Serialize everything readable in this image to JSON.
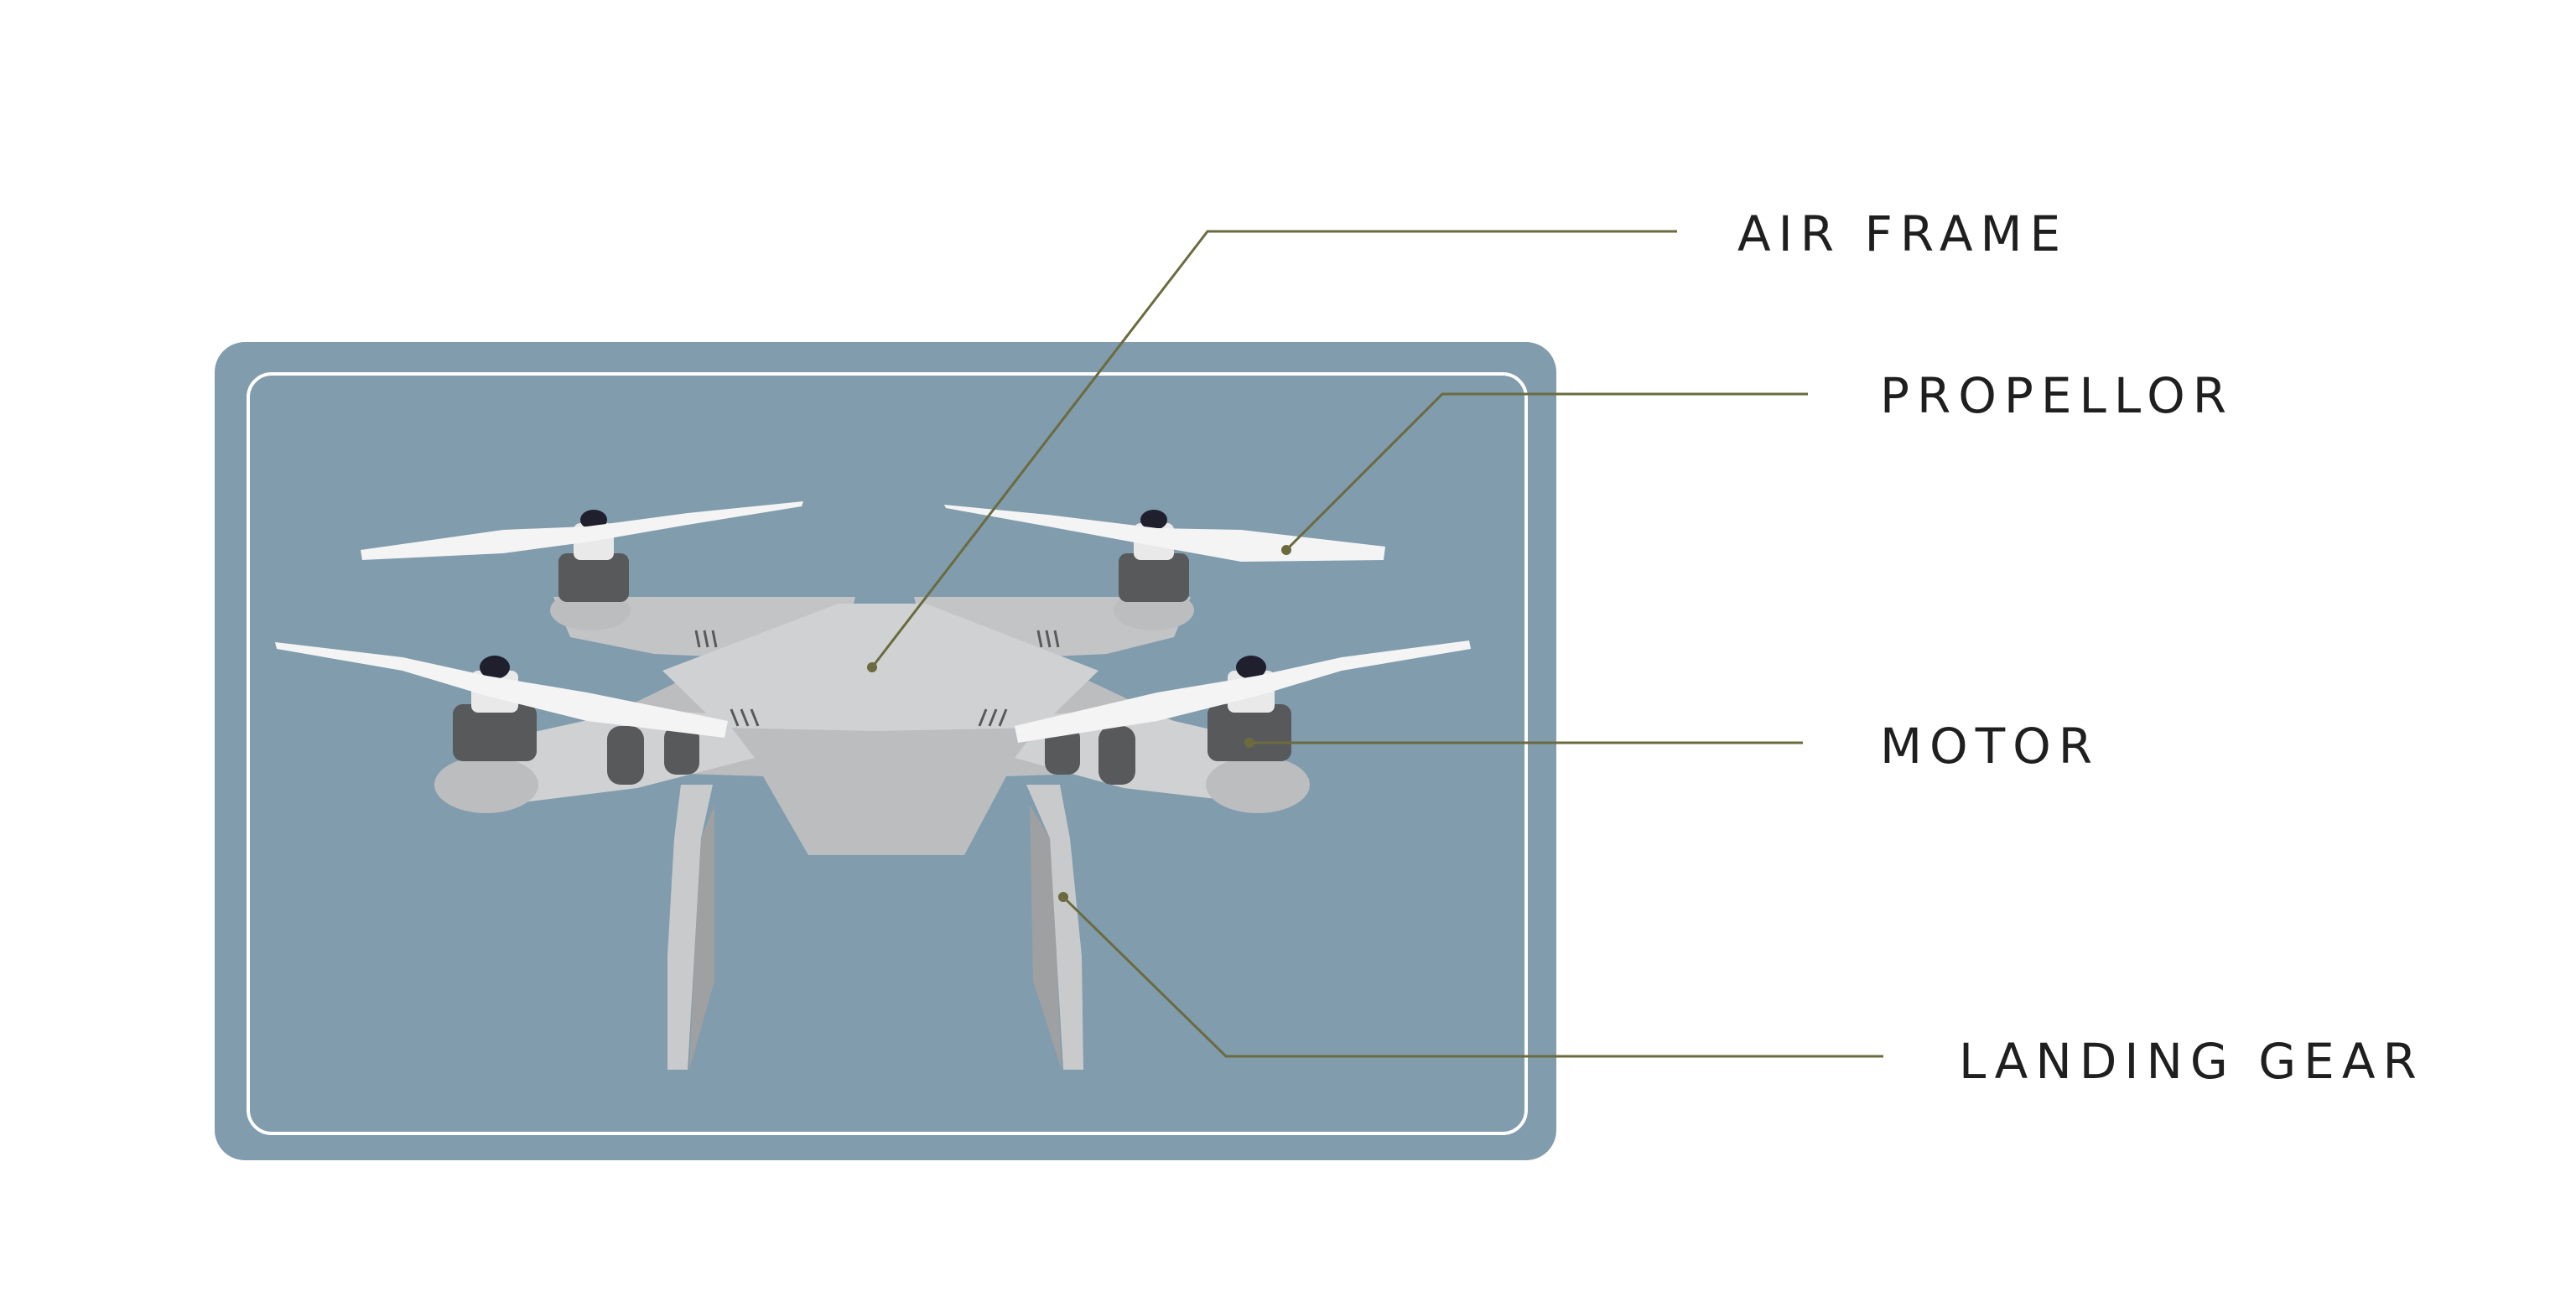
{
  "colors": {
    "background": "#ffffff",
    "panel": "#809cad",
    "panel_border": "#ffffff",
    "frame_light": "#d0d1d3",
    "frame_mid": "#bcbdbf",
    "frame_dark": "#a7a8aa",
    "motor": "#58595b",
    "motor_cap": "#1f1f2e",
    "propeller": "#f4f4f4",
    "leader_line": "#6b6b3f",
    "label_text": "#1f1f1f"
  },
  "labels": {
    "air_frame": "AIR FRAME",
    "propellor": "PROPELLOR",
    "motor": "MOTOR",
    "landing_gear": "LANDING GEAR"
  }
}
